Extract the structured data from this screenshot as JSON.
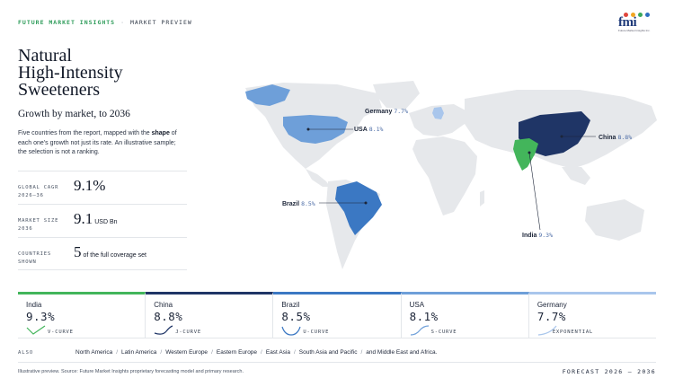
{
  "header": {
    "brand": "FUTURE MARKET INSIGHTS",
    "separator": "·",
    "section": "MARKET PREVIEW",
    "logo_text": "fmi",
    "logo_tagline": "Future Market Insights Inc.",
    "logo_dot_colors": [
      "#e0463c",
      "#f2a623",
      "#3aa85c",
      "#2f6fc2"
    ]
  },
  "title": {
    "line1": "Natural",
    "line2": "High-Intensity",
    "line3": "Sweeteners",
    "subtitle": "Growth by market, to 2036"
  },
  "description": {
    "part1": "Five countries from the report, mapped with the ",
    "bold": "shape",
    "part2": " of each one's growth not just its rate. An illustrative sample; the selection is not a ranking."
  },
  "stats": [
    {
      "label1": "GLOBAL CAGR",
      "label2": "2026–36",
      "value": "9.1%",
      "unit": ""
    },
    {
      "label1": "MARKET SIZE",
      "label2": "2036",
      "value": "9.1",
      "unit": "USD Bn"
    },
    {
      "label1": "COUNTRIES",
      "label2": "SHOWN",
      "value": "5",
      "unit": "of the full coverage set"
    }
  ],
  "chart_data": {
    "type": "map",
    "title": "Growth by market, to 2036",
    "series": [
      {
        "name": "India",
        "cagr": 9.3,
        "value_label": "9.3%",
        "curve": "V-CURVE",
        "color": "#43b55b"
      },
      {
        "name": "China",
        "cagr": 8.8,
        "value_label": "8.8%",
        "curve": "J-CURVE",
        "color": "#1f3566"
      },
      {
        "name": "Brazil",
        "cagr": 8.5,
        "value_label": "8.5%",
        "curve": "U-CURVE",
        "color": "#3b78c3"
      },
      {
        "name": "USA",
        "cagr": 8.1,
        "value_label": "8.1%",
        "curve": "S-CURVE",
        "color": "#6e9fd9"
      },
      {
        "name": "Germany",
        "cagr": 7.7,
        "value_label": "7.7%",
        "curve": "EXPONENTIAL",
        "color": "#a9c6ec"
      }
    ]
  },
  "also": {
    "label": "ALSO",
    "regions": [
      "North America",
      "Latin America",
      "Western Europe",
      "Eastern Europe",
      "East Asia",
      "South Asia and Pacific",
      "and Middle East and Africa."
    ]
  },
  "footer": {
    "note": "Illustrative preview. Source: Future Market Insights proprietary forecasting model and primary research.",
    "forecast": "FORECAST 2026 – 2036"
  }
}
